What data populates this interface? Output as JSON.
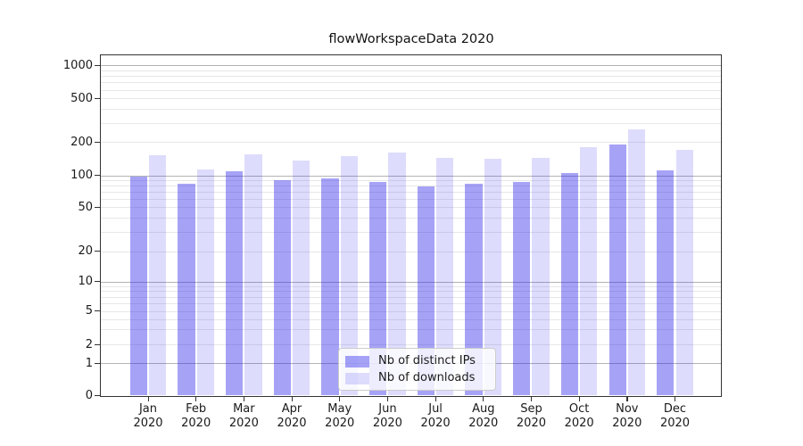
{
  "title": "flowWorkspaceData 2020",
  "chart_data": {
    "type": "bar",
    "title": "flowWorkspaceData 2020",
    "categories": [
      "Jan 2020",
      "Feb 2020",
      "Mar 2020",
      "Apr 2020",
      "May 2020",
      "Jun 2020",
      "Jul 2020",
      "Aug 2020",
      "Sep 2020",
      "Oct 2020",
      "Nov 2020",
      "Dec 2020"
    ],
    "series": [
      {
        "name": "Nb of distinct IPs",
        "color": "rgba(43,36,235,0.42)",
        "values": [
          97,
          84,
          110,
          91,
          94,
          87,
          78,
          84,
          86,
          105,
          190,
          112
        ]
      },
      {
        "name": "Nb of downloads",
        "color": "rgba(43,36,235,0.16)",
        "values": [
          152,
          113,
          155,
          137,
          150,
          160,
          144,
          142,
          143,
          180,
          262,
          170
        ]
      }
    ],
    "yscale": "symlog",
    "yticks": [
      0,
      1,
      2,
      5,
      10,
      20,
      50,
      100,
      200,
      500,
      1000
    ],
    "ylim": [
      0,
      1200
    ],
    "xlabel": "",
    "ylabel": "",
    "grid": true,
    "legend_position": "lower-center-inside"
  },
  "colors": {
    "grid_major": "#b3b3b3",
    "grid_minor": "#e7e7e7",
    "axis": "#333333",
    "text": "#1a1a1a",
    "legend_border": "#cccccc",
    "legend_bg": "rgba(255,255,255,0.8)"
  }
}
